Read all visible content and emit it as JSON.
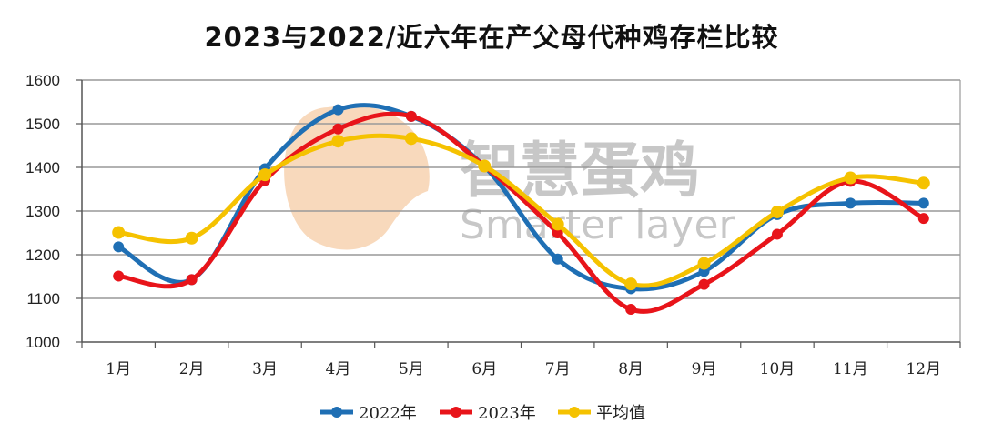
{
  "chart_data": {
    "type": "line",
    "title": "2023与2022/近六年在产父母代种鸡存栏比较",
    "categories": [
      "1月",
      "2月",
      "3月",
      "4月",
      "5月",
      "6月",
      "7月",
      "8月",
      "9月",
      "10月",
      "11月",
      "12月"
    ],
    "ylim": [
      1000,
      1600
    ],
    "yticks": [
      1000,
      1100,
      1200,
      1300,
      1400,
      1500,
      1600
    ],
    "grid": true,
    "legend_position": "bottom",
    "series": [
      {
        "name": "2022年",
        "color": "#1f6fb4",
        "values": [
          1218,
          1143,
          1397,
          1532,
          1517,
          1402,
          1190,
          1122,
          1162,
          1292,
          1318,
          1318
        ]
      },
      {
        "name": "2023年",
        "color": "#e8141a",
        "values": [
          1151,
          1143,
          1370,
          1488,
          1517,
          1403,
          1250,
          1075,
          1132,
          1247,
          1368,
          1283
        ]
      },
      {
        "name": "平均值",
        "color": "#f5c200",
        "values": [
          1251,
          1238,
          1383,
          1460,
          1466,
          1403,
          1270,
          1133,
          1180,
          1298,
          1376,
          1364
        ]
      }
    ]
  },
  "watermark": {
    "cn": "智慧蛋鸡",
    "en": "Smarter layer"
  }
}
